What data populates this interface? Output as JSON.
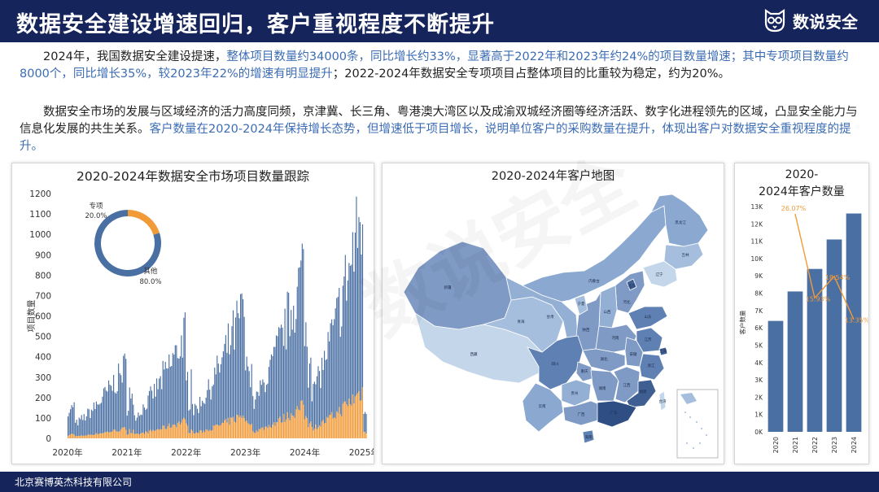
{
  "header": {
    "title": "数据安全建设增速回归，客户重视程度不断提升",
    "logo_text": "数说安全"
  },
  "paragraphs": [
    [
      {
        "t": "2024年，我国数据安全建设提速，",
        "hl": false
      },
      {
        "t": "整体项目数量约34000条，同比增长约33%，显著高于2022年和2023年约24%的项目数量增速；其中专项项目数量约8000个，同比增长35%，较2023年22%的增速有明显提升",
        "hl": true
      },
      {
        "t": "；2022-2024年数据安全专项项目占整体项目的比重较为稳定，约为20%。",
        "hl": false
      }
    ],
    [
      {
        "t": "数据安全市场的发展与区域经济的活力高度同频，京津冀、长三角、粤港澳大湾区以及成渝双城经济圈等经济活跃、数字化进程领先的区域，凸显安全能力与信息化发展的共生关系。",
        "hl": false
      },
      {
        "t": "客户数量在2020-2024年保持增长态势，但增速低于项目增长，说明单位客户的采购数量在提升，体现出客户对数据安全重视程度的提升。",
        "hl": true
      }
    ]
  ],
  "watermark": "数说安全",
  "colors": {
    "navy": "#15245a",
    "blue": "#4a6fa3",
    "orange": "#f19a38",
    "text_blue": "#3b6cb4"
  },
  "panel_titles": {
    "left": "2020-2024年数据安全市场项目数量跟踪",
    "middle": "2020-2024年客户地图",
    "right_line1": "2020-",
    "right_line2": "2024年客户数量"
  },
  "map_labels": [
    "新疆",
    "西藏",
    "青海",
    "甘肃",
    "内蒙古",
    "黑龙江",
    "吉林",
    "辽宁",
    "河北",
    "北京",
    "山西",
    "陕西",
    "宁夏",
    "四川",
    "重庆",
    "云南",
    "贵州",
    "广西",
    "广东",
    "湖南",
    "湖北",
    "河南",
    "山东",
    "江苏",
    "安徽",
    "浙江",
    "江西",
    "福建",
    "上海",
    "海南",
    "台湾"
  ],
  "chart_data": [
    {
      "type": "bar",
      "title": "2020-2024年数据安全市场项目数量跟踪",
      "ylabel": "项目数量",
      "xlabel": "",
      "ylim": [
        0,
        1200
      ],
      "yticks": [
        0,
        100,
        200,
        300,
        400,
        500,
        600,
        700,
        800,
        900,
        1000,
        1100,
        1200
      ],
      "xticks": [
        "2020年",
        "2021年",
        "2022年",
        "2023年",
        "2024年",
        "2025年"
      ],
      "granularity": "daily (weekday) project counts, stacked: 其他 (blue) + 专项 (orange)",
      "series": [
        {
          "name": "其他",
          "color": "#4a6fa3",
          "yearly_peaks": [
            400,
            560,
            700,
            900,
            1170
          ]
        },
        {
          "name": "专项",
          "color": "#f19a38",
          "yearly_peaks": [
            60,
            110,
            150,
            200,
            300
          ]
        }
      ],
      "inset_pie": {
        "type": "pie",
        "labels": [
          "专项",
          "其他"
        ],
        "values": [
          20.0,
          80.0
        ],
        "value_labels": [
          "20.0%",
          "80.0%"
        ]
      }
    },
    {
      "type": "bar",
      "title": "2020-2024年客户数量",
      "ylabel": "客户数量",
      "categories": [
        "2020",
        "2021",
        "2022",
        "2023",
        "2024"
      ],
      "values": [
        6400,
        8100,
        9400,
        11100,
        12600
      ],
      "ylim": [
        0,
        13000
      ],
      "yticks": [
        "0K",
        "1K",
        "2K",
        "3K",
        "4K",
        "5K",
        "6K",
        "7K",
        "8K",
        "9K",
        "10K",
        "11K",
        "12K",
        "13K"
      ],
      "growth_line": {
        "name": "同比增速",
        "color": "#f19a38",
        "categories": [
          "2021",
          "2022",
          "2023",
          "2024"
        ],
        "values": [
          26.07,
          15.93,
          18.54,
          13.35
        ],
        "labels": [
          "26.07%",
          "15.93%",
          "18.54%",
          "13.35%"
        ]
      }
    }
  ],
  "footer": {
    "company": "北京赛博英杰科技有限公司"
  }
}
